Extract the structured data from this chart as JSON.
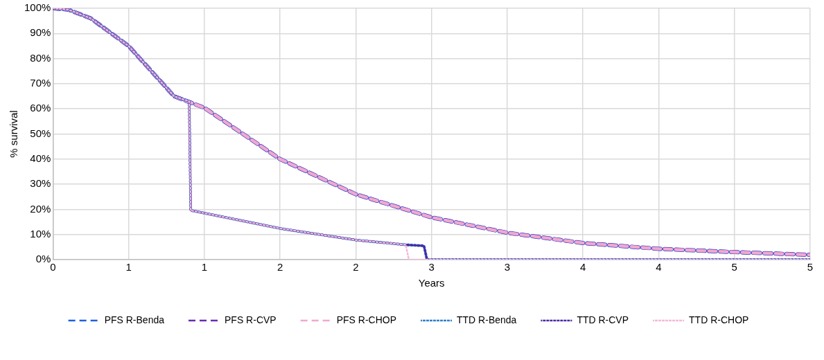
{
  "chart_data": {
    "type": "line",
    "xlabel": "Years",
    "ylabel": "% survival",
    "xlim": [
      0,
      5
    ],
    "xticks": [
      {
        "value": 0,
        "label": "0"
      },
      {
        "value": 0.5,
        "label": "1"
      },
      {
        "value": 1,
        "label": "1"
      },
      {
        "value": 1.5,
        "label": "2"
      },
      {
        "value": 2,
        "label": "2"
      },
      {
        "value": 2.5,
        "label": "3"
      },
      {
        "value": 3,
        "label": "3"
      },
      {
        "value": 3.5,
        "label": "4"
      },
      {
        "value": 4,
        "label": "4"
      },
      {
        "value": 4.5,
        "label": "5"
      },
      {
        "value": 5,
        "label": "5"
      }
    ],
    "ylim": [
      0,
      100
    ],
    "yticks": [
      {
        "value": 0,
        "label": "0%"
      },
      {
        "value": 10,
        "label": "10%"
      },
      {
        "value": 20,
        "label": "20%"
      },
      {
        "value": 30,
        "label": "30%"
      },
      {
        "value": 40,
        "label": "40%"
      },
      {
        "value": 50,
        "label": "50%"
      },
      {
        "value": 60,
        "label": "60%"
      },
      {
        "value": 70,
        "label": "70%"
      },
      {
        "value": 80,
        "label": "80%"
      },
      {
        "value": 90,
        "label": "90%"
      },
      {
        "value": 100,
        "label": "100%"
      }
    ],
    "grid": true,
    "legend": "bottom",
    "marker": "none",
    "series": [
      {
        "name": "PFS R-Benda",
        "color": "#1f5fe0",
        "line_style": "dashed",
        "x": [
          0,
          0.1,
          0.25,
          0.5,
          0.8,
          1,
          1.5,
          2,
          2.5,
          3,
          3.5,
          4,
          4.5,
          5
        ],
        "values": [
          100,
          99.5,
          96,
          85,
          65,
          60.4,
          40,
          26,
          16.8,
          10.7,
          6.6,
          4.3,
          3,
          1.9
        ]
      },
      {
        "name": "PFS R-CVP",
        "color": "#6a2bb0",
        "line_style": "dashed",
        "x": [
          0,
          0.1,
          0.25,
          0.5,
          0.8,
          1,
          1.5,
          2,
          2.5,
          3,
          3.5,
          4,
          4.5,
          5
        ],
        "values": [
          100,
          99.5,
          96,
          85,
          65,
          60.4,
          40,
          26,
          16.8,
          10.7,
          6.6,
          4.3,
          3,
          1.9
        ]
      },
      {
        "name": "PFS R-CHOP",
        "color": "#f0a8d0",
        "line_style": "dashed",
        "x": [
          0,
          0.1,
          0.25,
          0.5,
          0.8,
          1,
          1.5,
          2,
          2.5,
          3,
          3.5,
          4,
          4.5,
          5
        ],
        "values": [
          100,
          99.5,
          96,
          85,
          65,
          60.4,
          40,
          26,
          16.8,
          10.7,
          6.6,
          4.3,
          3,
          1.9
        ]
      },
      {
        "name": "TTD R-Benda",
        "color": "#2f7fd0",
        "line_style": "dotted",
        "x": [
          0,
          0.1,
          0.25,
          0.5,
          0.8,
          0.9,
          0.91,
          1,
          1.5,
          2,
          2.33,
          2.45,
          2.47,
          5
        ],
        "values": [
          100,
          99.5,
          96,
          85,
          65,
          63,
          19.6,
          18.5,
          12.4,
          7.8,
          5.9,
          5.5,
          0,
          0
        ]
      },
      {
        "name": "TTD R-CVP",
        "color": "#4a2aa8",
        "line_style": "dotted",
        "x": [
          0,
          0.1,
          0.25,
          0.5,
          0.8,
          0.9,
          0.91,
          1,
          1.5,
          2,
          2.33,
          2.45,
          2.47,
          5
        ],
        "values": [
          100,
          99.5,
          96,
          85,
          65,
          63,
          19.6,
          18.5,
          12.4,
          7.8,
          5.9,
          5.5,
          0,
          0
        ]
      },
      {
        "name": "TTD R-CHOP",
        "color": "#f5b8d8",
        "line_style": "dotted",
        "x": [
          0,
          0.1,
          0.25,
          0.5,
          0.8,
          0.9,
          0.91,
          1,
          1.5,
          2,
          2.33,
          2.35,
          5
        ],
        "values": [
          100,
          99.5,
          96,
          85,
          65,
          63,
          19.6,
          18.5,
          12.4,
          7.8,
          5.9,
          0,
          0
        ]
      }
    ]
  }
}
